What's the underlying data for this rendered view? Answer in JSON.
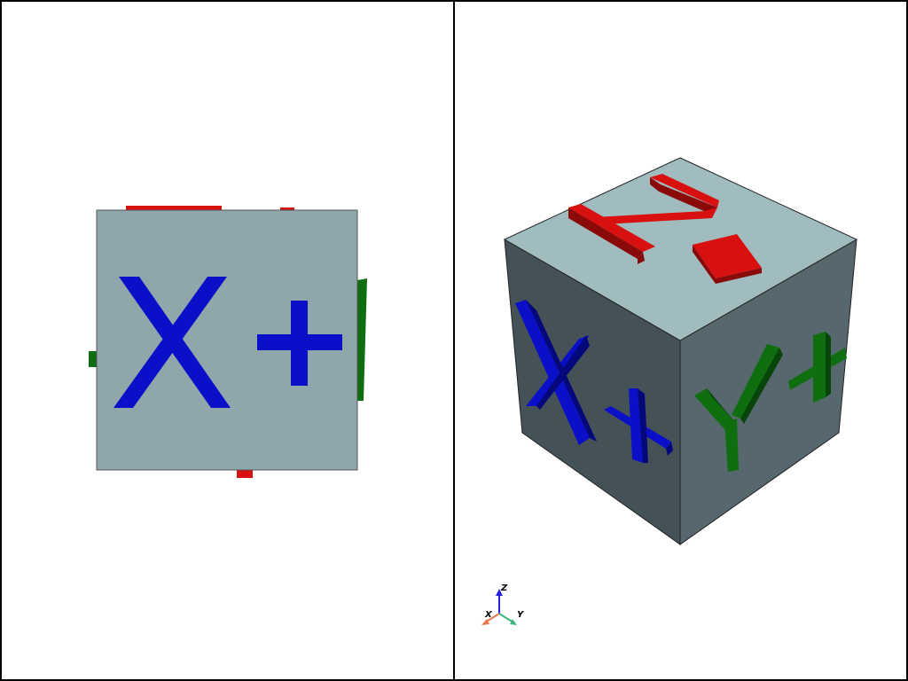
{
  "left_view": {
    "front_face_color": "#8fa6ab",
    "front_face_letter": "X",
    "front_face_sign": "+",
    "letter_color": "#0a10c8",
    "x_color": "#0a10c8",
    "y_color": "#0f6e10",
    "z_color": "#d81010"
  },
  "right_view": {
    "top_face_color": "#a0bcbf",
    "left_face_color": "#445258",
    "right_face_color": "#56676d",
    "x_face_letter": "X",
    "y_face_letter": "Y",
    "z_face_letter": "Z",
    "sign": "+",
    "x_color": "#0a10c8",
    "y_color": "#0f6e10",
    "z_color": "#d81010"
  },
  "axes_widget": {
    "x_label": "X",
    "y_label": "Y",
    "z_label": "Z",
    "x_color": "#e8784e",
    "y_color": "#3cb882",
    "z_color": "#2222dd"
  }
}
